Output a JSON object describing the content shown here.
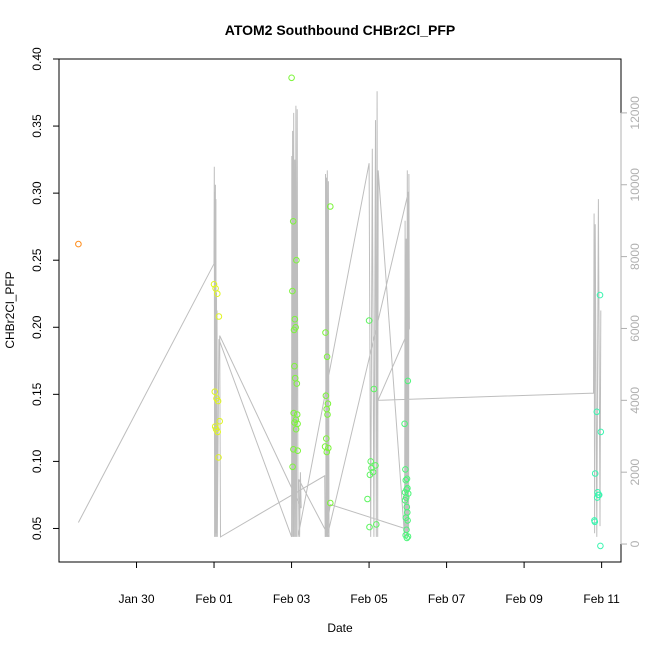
{
  "chart_data": {
    "type": "scatter",
    "title": "ATOM2 Southbound CHBr2Cl_PFP",
    "xlabel": "Date",
    "ylabel": "CHBr2Cl_PFP",
    "xlim": [
      "2017-01-28 00:00",
      "2017-02-11 12:00"
    ],
    "ylim": [
      0.025,
      0.4
    ],
    "y2lim": [
      -500,
      13500
    ],
    "x_ticks": [
      "2017-01-30",
      "2017-02-01",
      "2017-02-03",
      "2017-02-05",
      "2017-02-07",
      "2017-02-09",
      "2017-02-11"
    ],
    "x_tick_labels": [
      "Jan 30",
      "Feb 01",
      "Feb 03",
      "Feb 05",
      "Feb 07",
      "Feb 09",
      "Feb 11"
    ],
    "y_ticks": [
      0.05,
      0.1,
      0.15,
      0.2,
      0.25,
      0.3,
      0.35,
      0.4
    ],
    "y_tick_labels": [
      "0.05",
      "0.10",
      "0.15",
      "0.20",
      "0.25",
      "0.30",
      "0.35",
      "0.40"
    ],
    "y2_ticks": [
      0,
      2000,
      4000,
      6000,
      8000,
      10000,
      12000
    ],
    "y2_tick_labels": [
      "0",
      "2000",
      "4000",
      "6000",
      "8000",
      "10000",
      "12000"
    ],
    "grid": false,
    "legend": "none",
    "colors": {
      "altitude_line": "#bebebe",
      "right_axis": "#b0b0b0",
      "axis": "#000000"
    },
    "points": [
      {
        "x": "2017-01-28 12:00",
        "y": 0.262,
        "color": "#ff8c1a"
      },
      {
        "x": "2017-02-01 00:00",
        "y": 0.232,
        "color": "#e0f522"
      },
      {
        "x": "2017-02-01 01:00",
        "y": 0.229,
        "color": "#e0f522"
      },
      {
        "x": "2017-02-01 02:00",
        "y": 0.225,
        "color": "#e0f522"
      },
      {
        "x": "2017-02-01 03:00",
        "y": 0.208,
        "color": "#e0f522"
      },
      {
        "x": "2017-02-01 00:30",
        "y": 0.152,
        "color": "#e0f522"
      },
      {
        "x": "2017-02-01 01:30",
        "y": 0.147,
        "color": "#e0f522"
      },
      {
        "x": "2017-02-01 02:30",
        "y": 0.145,
        "color": "#e0f522"
      },
      {
        "x": "2017-02-01 03:30",
        "y": 0.13,
        "color": "#e0f522"
      },
      {
        "x": "2017-02-01 00:45",
        "y": 0.126,
        "color": "#e0f522"
      },
      {
        "x": "2017-02-01 01:15",
        "y": 0.124,
        "color": "#e0f522"
      },
      {
        "x": "2017-02-01 02:15",
        "y": 0.122,
        "color": "#e0f522"
      },
      {
        "x": "2017-02-01 02:45",
        "y": 0.103,
        "color": "#e0f522"
      },
      {
        "x": "2017-02-03 00:00",
        "y": 0.386,
        "color": "#7cf53a"
      },
      {
        "x": "2017-02-03 01:00",
        "y": 0.279,
        "color": "#7cf53a"
      },
      {
        "x": "2017-02-03 03:00",
        "y": 0.25,
        "color": "#7cf53a"
      },
      {
        "x": "2017-02-03 00:30",
        "y": 0.227,
        "color": "#7cf53a"
      },
      {
        "x": "2017-02-03 02:00",
        "y": 0.206,
        "color": "#7cf53a"
      },
      {
        "x": "2017-02-03 01:30",
        "y": 0.198,
        "color": "#7cf53a"
      },
      {
        "x": "2017-02-03 02:30",
        "y": 0.2,
        "color": "#7cf53a"
      },
      {
        "x": "2017-02-03 01:45",
        "y": 0.171,
        "color": "#7cf53a"
      },
      {
        "x": "2017-02-03 02:15",
        "y": 0.162,
        "color": "#7cf53a"
      },
      {
        "x": "2017-02-03 03:15",
        "y": 0.158,
        "color": "#7cf53a"
      },
      {
        "x": "2017-02-03 01:20",
        "y": 0.136,
        "color": "#7cf53a"
      },
      {
        "x": "2017-02-03 03:30",
        "y": 0.135,
        "color": "#7cf53a"
      },
      {
        "x": "2017-02-03 02:40",
        "y": 0.131,
        "color": "#7cf53a"
      },
      {
        "x": "2017-02-03 01:50",
        "y": 0.129,
        "color": "#7cf53a"
      },
      {
        "x": "2017-02-03 03:45",
        "y": 0.128,
        "color": "#7cf53a"
      },
      {
        "x": "2017-02-03 02:50",
        "y": 0.124,
        "color": "#7cf53a"
      },
      {
        "x": "2017-02-03 01:10",
        "y": 0.109,
        "color": "#7cf53a"
      },
      {
        "x": "2017-02-03 03:50",
        "y": 0.108,
        "color": "#7cf53a"
      },
      {
        "x": "2017-02-03 00:40",
        "y": 0.096,
        "color": "#7cf53a"
      },
      {
        "x": "2017-02-03 21:00",
        "y": 0.196,
        "color": "#7cf53a"
      },
      {
        "x": "2017-02-03 22:00",
        "y": 0.178,
        "color": "#7cf53a"
      },
      {
        "x": "2017-02-03 21:15",
        "y": 0.149,
        "color": "#7cf53a"
      },
      {
        "x": "2017-02-03 22:30",
        "y": 0.143,
        "color": "#7cf53a"
      },
      {
        "x": "2017-02-03 21:45",
        "y": 0.139,
        "color": "#7cf53a"
      },
      {
        "x": "2017-02-03 22:15",
        "y": 0.135,
        "color": "#7cf53a"
      },
      {
        "x": "2017-02-03 21:30",
        "y": 0.117,
        "color": "#7cf53a"
      },
      {
        "x": "2017-02-03 20:45",
        "y": 0.111,
        "color": "#7cf53a"
      },
      {
        "x": "2017-02-03 22:45",
        "y": 0.11,
        "color": "#7cf53a"
      },
      {
        "x": "2017-02-03 21:50",
        "y": 0.107,
        "color": "#7cf53a"
      },
      {
        "x": "2017-02-04 00:00",
        "y": 0.29,
        "color": "#7cf53a"
      },
      {
        "x": "2017-02-04 00:00",
        "y": 0.069,
        "color": "#7cf53a"
      },
      {
        "x": "2017-02-05 00:00",
        "y": 0.205,
        "color": "#5df560"
      },
      {
        "x": "2017-02-05 03:00",
        "y": 0.154,
        "color": "#5df560"
      },
      {
        "x": "2017-02-05 01:00",
        "y": 0.1,
        "color": "#5df560"
      },
      {
        "x": "2017-02-05 04:00",
        "y": 0.097,
        "color": "#5df560"
      },
      {
        "x": "2017-02-05 01:30",
        "y": 0.095,
        "color": "#5df560"
      },
      {
        "x": "2017-02-05 02:30",
        "y": 0.092,
        "color": "#5df560"
      },
      {
        "x": "2017-02-05 00:30",
        "y": 0.09,
        "color": "#5df560"
      },
      {
        "x": "2017-02-04 23:00",
        "y": 0.072,
        "color": "#5df560"
      },
      {
        "x": "2017-02-05 04:30",
        "y": 0.053,
        "color": "#5df560"
      },
      {
        "x": "2017-02-05 00:15",
        "y": 0.051,
        "color": "#5df560"
      },
      {
        "x": "2017-02-05 22:00",
        "y": 0.128,
        "color": "#4cf579"
      },
      {
        "x": "2017-02-06 00:00",
        "y": 0.16,
        "color": "#4cf579"
      },
      {
        "x": "2017-02-05 22:30",
        "y": 0.094,
        "color": "#4cf579"
      },
      {
        "x": "2017-02-05 23:30",
        "y": 0.087,
        "color": "#4cf579"
      },
      {
        "x": "2017-02-05 22:45",
        "y": 0.086,
        "color": "#4cf579"
      },
      {
        "x": "2017-02-05 23:45",
        "y": 0.08,
        "color": "#4cf579"
      },
      {
        "x": "2017-02-05 23:15",
        "y": 0.079,
        "color": "#4cf579"
      },
      {
        "x": "2017-02-05 22:15",
        "y": 0.077,
        "color": "#4cf579"
      },
      {
        "x": "2017-02-06 00:15",
        "y": 0.076,
        "color": "#4cf579"
      },
      {
        "x": "2017-02-05 23:00",
        "y": 0.073,
        "color": "#4cf579"
      },
      {
        "x": "2017-02-05 22:20",
        "y": 0.071,
        "color": "#4cf579"
      },
      {
        "x": "2017-02-05 23:20",
        "y": 0.066,
        "color": "#4cf579"
      },
      {
        "x": "2017-02-05 23:40",
        "y": 0.062,
        "color": "#4cf579"
      },
      {
        "x": "2017-02-05 22:50",
        "y": 0.058,
        "color": "#4cf579"
      },
      {
        "x": "2017-02-05 23:50",
        "y": 0.056,
        "color": "#4cf579"
      },
      {
        "x": "2017-02-05 23:10",
        "y": 0.049,
        "color": "#4cf579"
      },
      {
        "x": "2017-02-05 22:40",
        "y": 0.045,
        "color": "#4cf579"
      },
      {
        "x": "2017-02-06 00:05",
        "y": 0.044,
        "color": "#4cf579"
      },
      {
        "x": "2017-02-05 23:25",
        "y": 0.043,
        "color": "#4cf579"
      },
      {
        "x": "2017-02-10 23:00",
        "y": 0.224,
        "color": "#3af5b0"
      },
      {
        "x": "2017-02-10 21:00",
        "y": 0.137,
        "color": "#3af5b0"
      },
      {
        "x": "2017-02-10 23:30",
        "y": 0.122,
        "color": "#3af5b0"
      },
      {
        "x": "2017-02-10 20:00",
        "y": 0.091,
        "color": "#3af5b0"
      },
      {
        "x": "2017-02-10 21:30",
        "y": 0.077,
        "color": "#3af5b0"
      },
      {
        "x": "2017-02-10 22:00",
        "y": 0.075,
        "color": "#3af5b0"
      },
      {
        "x": "2017-02-10 22:30",
        "y": 0.075,
        "color": "#3af5b0"
      },
      {
        "x": "2017-02-10 21:15",
        "y": 0.073,
        "color": "#3af5b0"
      },
      {
        "x": "2017-02-10 19:30",
        "y": 0.056,
        "color": "#3af5b0"
      },
      {
        "x": "2017-02-10 19:45",
        "y": 0.055,
        "color": "#3af5b0"
      },
      {
        "x": "2017-02-10 23:15",
        "y": 0.037,
        "color": "#3af5b0"
      }
    ],
    "altitude_series": {
      "x": [
        "2017-01-28 12:00",
        "2017-02-01 00:00",
        "2017-02-01 00:10",
        "2017-02-01 00:20",
        "2017-02-01 00:30",
        "2017-02-01 00:40",
        "2017-02-01 00:50",
        "2017-02-01 01:00",
        "2017-02-01 01:10",
        "2017-02-01 01:20",
        "2017-02-01 01:30",
        "2017-02-01 01:40",
        "2017-02-01 01:50",
        "2017-02-01 02:00",
        "2017-02-01 03:00",
        "2017-02-03 00:00",
        "2017-02-03 00:10",
        "2017-02-03 00:20",
        "2017-02-03 00:40",
        "2017-02-03 01:00",
        "2017-02-03 01:20",
        "2017-02-03 01:40",
        "2017-02-03 02:00",
        "2017-02-03 02:20",
        "2017-02-03 02:40",
        "2017-02-03 03:00",
        "2017-02-03 03:30",
        "2017-02-03 04:00",
        "2017-02-05 00:00",
        "2017-02-05 01:00",
        "2017-02-05 02:00",
        "2017-02-05 03:00",
        "2017-02-05 04:00",
        "2017-02-05 04:30",
        "2017-02-05 05:00",
        "2017-02-05 05:20",
        "2017-02-05 05:40",
        "2017-02-05 22:00",
        "2017-02-05 22:20",
        "2017-02-05 22:40",
        "2017-02-05 23:00",
        "2017-02-05 23:20",
        "2017-02-05 23:40",
        "2017-02-06 00:00",
        "2017-02-06 00:20",
        "2017-02-03 22:00",
        "2017-02-03 21:40",
        "2017-02-03 21:20",
        "2017-02-03 21:00",
        "2017-02-03 21:50",
        "2017-02-03 22:10",
        "2017-02-03 22:30",
        "2017-02-03 22:50",
        "2017-02-03 23:10",
        "2017-02-03 04:30",
        "2017-02-03 05:00",
        "2017-02-03 05:30",
        "2017-02-03 06:00",
        "2017-02-01 03:30",
        "2017-02-01 04:00",
        "2017-02-03 20:30",
        "2017-02-03 20:50",
        "2017-02-04 00:00",
        "2017-02-06 00:30",
        "2017-02-06 00:40",
        "2017-02-06 01:00",
        "2017-02-05 05:30",
        "2017-02-10 19:00",
        "2017-02-10 19:20",
        "2017-02-10 19:40",
        "2017-02-10 20:00",
        "2017-02-10 21:00",
        "2017-02-10 22:00",
        "2017-02-10 23:00",
        "2017-02-10 23:30"
      ],
      "y": [
        600,
        7800,
        10500,
        200,
        9800,
        200,
        10000,
        300,
        9600,
        200,
        7000,
        300,
        6500,
        200,
        5700,
        200,
        10800,
        200,
        11500,
        200,
        12000,
        200,
        10700,
        200,
        12200,
        200,
        12100,
        200,
        10600,
        200,
        11000,
        200,
        11800,
        200,
        12600,
        200,
        10400,
        200,
        9000,
        300,
        8500,
        200,
        10400,
        200,
        9800,
        200,
        10200,
        200,
        10300,
        200,
        10400,
        200,
        10100,
        200,
        1800,
        200,
        2000,
        1000,
        5800,
        200,
        1900,
        200,
        1100,
        400,
        10300,
        6000,
        4000,
        4200,
        9200,
        300,
        8900,
        200,
        9600,
        500,
        6500
      ]
    }
  }
}
